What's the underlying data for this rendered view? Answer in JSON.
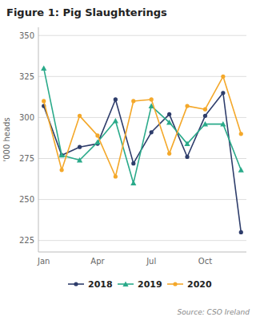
{
  "chart_data": {
    "type": "line",
    "title": "Figure 1: Pig Slaughterings",
    "ylabel": "'000 heads",
    "annotations": [
      "Source: CSO Ireland"
    ],
    "categories": [
      "Jan",
      null,
      null,
      "Apr",
      null,
      null,
      "Jul",
      null,
      null,
      "Oct",
      null,
      null
    ],
    "series": [
      {
        "name": "2018",
        "color": "#2e3d6b",
        "marker": "circle",
        "values": [
          307,
          277,
          282,
          284,
          311,
          272,
          291,
          302,
          276,
          301,
          315,
          230
        ]
      },
      {
        "name": "2019",
        "color": "#2aaa8a",
        "marker": "triangle",
        "values": [
          330,
          277,
          274,
          285,
          298,
          260,
          307,
          297,
          284,
          296,
          296,
          268
        ]
      },
      {
        "name": "2020",
        "color": "#f4a82a",
        "marker": "circle",
        "values": [
          310,
          268,
          301,
          289,
          264,
          310,
          311,
          278,
          307,
          305,
          325,
          290
        ]
      }
    ],
    "ylim": [
      218,
      355
    ],
    "yticks": [
      225,
      250,
      275,
      300,
      325,
      350
    ],
    "grid": true,
    "legend": "bottom"
  }
}
